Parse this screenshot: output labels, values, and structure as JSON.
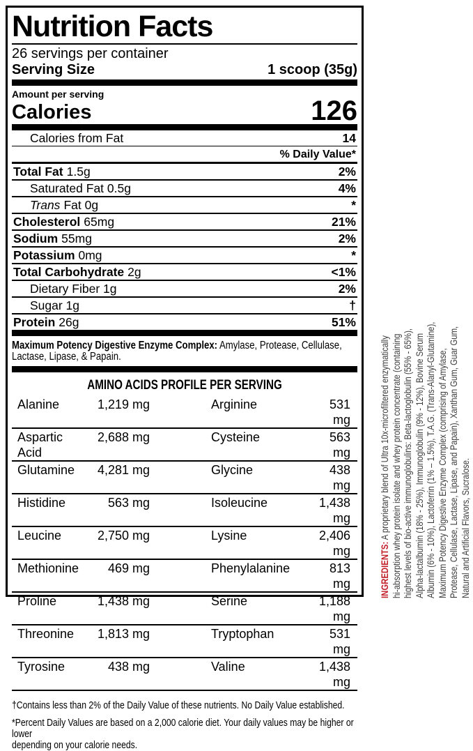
{
  "colors": {
    "accent_red": "#c2202b",
    "ink": "#000000"
  },
  "label": {
    "title": "Nutrition Facts",
    "servings_per_container": "26 servings per container",
    "serving_size_label": "Serving Size",
    "serving_size_value": "1 scoop (35g)",
    "amount_per_serving": "Amount per serving",
    "calories_label": "Calories",
    "calories_value": "126",
    "calories_from_fat_label": "Calories from Fat",
    "calories_from_fat_value": "14",
    "daily_value_header": "% Daily Value*",
    "nutrients": [
      {
        "name": "Total Fat",
        "amount": "1.5g",
        "dv": "2%"
      },
      {
        "name": "Saturated Fat 0.5g",
        "dv": "4%"
      },
      {
        "name_italic": "Trans",
        "name_rest": "Fat 0g",
        "dv": "*"
      },
      {
        "name": "Cholesterol",
        "amount": "65mg",
        "dv": "21%"
      },
      {
        "name": "Sodium",
        "amount": "55mg",
        "dv": "2%"
      },
      {
        "name": "Potassium",
        "amount": "0mg",
        "dv": "*"
      },
      {
        "name": "Total Carbohydrate",
        "amount": "2g",
        "dv": "<1%"
      },
      {
        "name": "Dietary Fiber 1g",
        "dv": "2%"
      },
      {
        "name": "Sugar 1g",
        "dv": "†"
      },
      {
        "name": "Protein",
        "amount": "26g",
        "dv": "51%"
      }
    ]
  },
  "enzyme": {
    "bold": "Maximum Potency Digestive Enzyme Complex:",
    "text": " Amylase, Protease, Cellulase,\nLactase, Lipase, & Papain."
  },
  "amino": {
    "header": "AMINO ACIDS PROFILE PER SERVING",
    "rows": [
      {
        "n1": "Alanine",
        "v1": "1,219 mg",
        "n2": "Arginine",
        "v2": "531 mg"
      },
      {
        "n1": "Aspartic Acid",
        "v1": "2,688 mg",
        "n2": "Cysteine",
        "v2": "563 mg"
      },
      {
        "n1": "Glutamine",
        "v1": "4,281 mg",
        "n2": "Glycine",
        "v2": "438 mg"
      },
      {
        "n1": "Histidine",
        "v1": "563 mg",
        "n2": "Isoleucine",
        "v2": "1,438 mg"
      },
      {
        "n1": "Leucine",
        "v1": "2,750 mg",
        "n2": "Lysine",
        "v2": "2,406 mg"
      },
      {
        "n1": "Methionine",
        "v1": "469 mg",
        "n2": "Phenylalanine",
        "v2": "813 mg"
      },
      {
        "n1": "Proline",
        "v1": "1,438 mg",
        "n2": "Serine",
        "v2": "1,188 mg"
      },
      {
        "n1": "Threonine",
        "v1": "1,813 mg",
        "n2": "Tryptophan",
        "v2": "531 mg"
      },
      {
        "n1": "Tyrosine",
        "v1": "438 mg",
        "n2": "Valine",
        "v2": "1,438 mg"
      }
    ]
  },
  "footnotes": {
    "dagger": "†Contains less than 2% of the Daily Value of these nutrients. No Daily Value established.",
    "percent": "*Percent Daily Values are based on a 2,000 calorie diet. Your daily values may be higher or lower\ndepending on your calorie needs."
  },
  "ingredients": {
    "label": "INGREDIENTS:",
    "text": " A proprietary blend of Ultra 10x-microfiltered enzymatically\nhi-absorption whey protein isolate and whey protein concentrate (containing\nhighest levels of bio-active immunoglobulins: Beta-lactoglobulin (55% - 65%),\nAlpha-lactalbumin (18% - 25%), Immunoglobulin (9% - 12%), Bovine Serum\nAlbumin (6% - 10%), Lactoferrin (1% – 1.5%), T.A.G. (Trans-Alanyl-Glutamine),\nMaximum Potency Digestive Enzyme Complex (comprising of Amylase,\nProtease, Cellulase, Lactase, Lipase, and Papain), Xanthan Gum, Guar Gum,\nNatural and Artificial Flavors, Sucralose."
  }
}
